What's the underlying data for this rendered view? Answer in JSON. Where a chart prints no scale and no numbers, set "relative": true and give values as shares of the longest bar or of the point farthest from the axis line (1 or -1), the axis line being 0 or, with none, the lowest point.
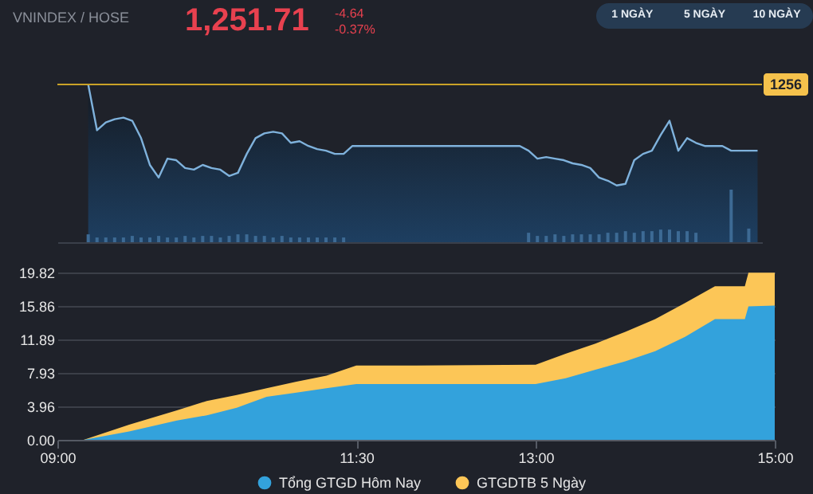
{
  "chart_data": [
    {
      "type": "area",
      "title": "VNINDEX / HOSE",
      "annotations": [
        "1,251.71",
        "-4.64",
        "-0.37%",
        "1 NGÀY",
        "5 NGÀY",
        "10 NGÀY",
        "1256"
      ],
      "relative": true,
      "color": "#7fb2dc",
      "categories": [
        null,
        null,
        null,
        null,
        null,
        null,
        null,
        null,
        null,
        null,
        null,
        null,
        null,
        null,
        null,
        null,
        null,
        null,
        null,
        null,
        null,
        null,
        null,
        null,
        null,
        null,
        null,
        null,
        null,
        null,
        null,
        null,
        null,
        null,
        null,
        null,
        null,
        null,
        null,
        null,
        null,
        null,
        null,
        null,
        null,
        null,
        null,
        null,
        null,
        null,
        null,
        null,
        null,
        null,
        null,
        null,
        null,
        null,
        null,
        null,
        null,
        null,
        null,
        null,
        null,
        null,
        null,
        null,
        null,
        null,
        null,
        null,
        null,
        null,
        null,
        null,
        null,
        null,
        null,
        null
      ],
      "values": [
        null,
        null,
        null,
        1.0,
        0.71,
        0.76,
        0.78,
        0.79,
        0.77,
        0.66,
        0.49,
        0.41,
        0.53,
        0.52,
        0.47,
        0.46,
        0.49,
        0.47,
        0.46,
        0.42,
        0.44,
        0.56,
        0.66,
        0.69,
        0.7,
        0.69,
        0.63,
        0.64,
        0.61,
        0.59,
        0.58,
        0.56,
        0.56,
        0.61,
        0.61,
        0.61,
        0.61,
        0.61,
        0.61,
        0.61,
        0.61,
        0.61,
        0.61,
        0.61,
        0.61,
        0.61,
        0.61,
        0.61,
        0.61,
        0.61,
        0.61,
        0.61,
        0.61,
        0.58,
        0.53,
        0.54,
        0.53,
        0.52,
        0.5,
        0.49,
        0.47,
        0.41,
        0.39,
        0.36,
        0.37,
        0.52,
        0.56,
        0.58,
        0.68,
        0.77,
        0.58,
        0.66,
        0.63,
        0.61,
        0.61,
        0.61,
        0.58,
        0.58,
        0.58,
        0.58
      ],
      "ref_lines": [
        {
          "axis": "y",
          "value": 1.0,
          "color": "#c9a227"
        }
      ]
    },
    {
      "type": "bar",
      "relative": true,
      "color": "#3d6a94",
      "categories": [
        null,
        null,
        null,
        null,
        null,
        null,
        null,
        null,
        null,
        null,
        null,
        null,
        null,
        null,
        null,
        null,
        null,
        null,
        null,
        null,
        null,
        null,
        null,
        null,
        null,
        null,
        null,
        null,
        null,
        null,
        null,
        null,
        null,
        null,
        null,
        null,
        null,
        null,
        null,
        null,
        null,
        null,
        null,
        null,
        null,
        null,
        null,
        null,
        null,
        null,
        null,
        null,
        null,
        null,
        null,
        null,
        null,
        null,
        null,
        null,
        null,
        null,
        null,
        null,
        null,
        null,
        null,
        null,
        null,
        null,
        null,
        null,
        null,
        null,
        null,
        null,
        null,
        null,
        null,
        null
      ],
      "values": [
        null,
        null,
        null,
        0.15,
        0.09,
        0.09,
        0.09,
        0.09,
        0.12,
        0.09,
        0.09,
        0.12,
        0.09,
        0.09,
        0.12,
        0.09,
        0.12,
        0.12,
        0.09,
        0.12,
        0.15,
        0.15,
        0.12,
        0.12,
        0.09,
        0.12,
        0.09,
        0.09,
        0.09,
        0.09,
        0.09,
        0.09,
        0.09,
        null,
        null,
        null,
        null,
        null,
        null,
        null,
        null,
        null,
        null,
        null,
        null,
        null,
        null,
        null,
        null,
        null,
        null,
        null,
        null,
        0.18,
        0.12,
        0.12,
        0.15,
        0.12,
        0.15,
        0.15,
        0.15,
        0.15,
        0.18,
        0.18,
        0.21,
        0.18,
        0.21,
        0.21,
        0.24,
        0.24,
        0.21,
        0.21,
        0.18,
        null,
        null,
        null,
        1.0,
        null,
        0.26,
        null
      ]
    },
    {
      "type": "area",
      "x": [
        9.0,
        9.22,
        9.6,
        10.0,
        10.25,
        10.5,
        10.75,
        11.0,
        11.25,
        11.5,
        12.0,
        13.0,
        13.25,
        13.5,
        13.75,
        14.0,
        14.25,
        14.5,
        14.75,
        14.78,
        15.0
      ],
      "xlim": [
        9,
        15
      ],
      "xticks": [
        {
          "value": 9,
          "label": "09:00"
        },
        {
          "value": 11.5,
          "label": "11:30"
        },
        {
          "value": 13,
          "label": "13:00"
        },
        {
          "value": 15,
          "label": "15:00"
        }
      ],
      "ylim": [
        0,
        19.82
      ],
      "yticks": [
        {
          "value": 0,
          "label": "0.00"
        },
        3.96,
        7.93,
        11.89,
        15.86,
        19.82
      ],
      "grid": "y",
      "legend": "bottom",
      "series": [
        {
          "name": "Tổng GTGD Hôm Nay",
          "color": "#33a2dc",
          "values": [
            0,
            0,
            1.0,
            2.3,
            2.9,
            3.8,
            5.1,
            5.6,
            6.1,
            6.6,
            6.6,
            6.6,
            7.3,
            8.3,
            9.3,
            10.5,
            12.2,
            14.3,
            14.3,
            15.8,
            15.9
          ]
        },
        {
          "name": "GTGDTB 5 Ngày",
          "color": "#fcc657",
          "values": [
            0,
            0,
            1.8,
            3.5,
            4.6,
            5.3,
            6.1,
            6.9,
            7.6,
            8.8,
            8.8,
            8.9,
            10.2,
            11.4,
            12.8,
            14.3,
            16.2,
            18.2,
            18.2,
            19.8,
            19.8
          ]
        }
      ]
    }
  ]
}
